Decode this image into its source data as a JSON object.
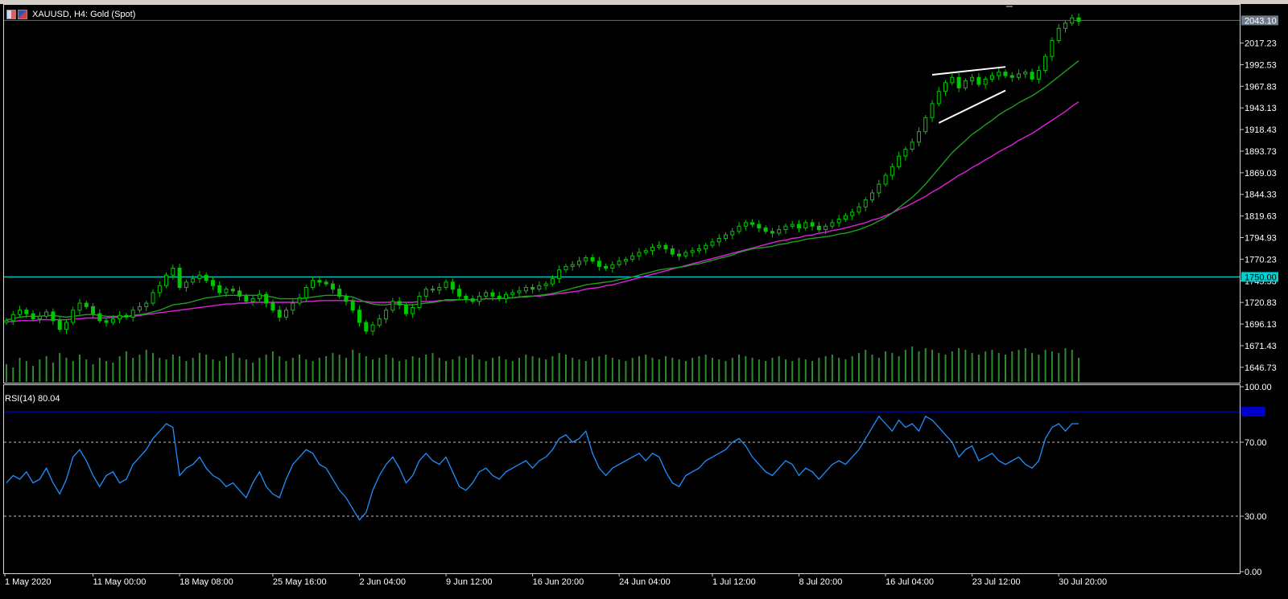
{
  "window": {
    "symbol_title": "XAUUSD, H4:  Gold (Spot)"
  },
  "icons": [
    "chart-bars-icon",
    "flag-icon"
  ],
  "colors": {
    "background": "#000000",
    "candle": "#00c800",
    "volume": "#2e8b2e",
    "ma_fast": "#1f9e1f",
    "ma_slow": "#e020e0",
    "rsi": "#1e90ff",
    "support_line": "#00d0d0",
    "trend_lines": "#ffffff",
    "rsi_level": "#0000cc"
  },
  "chart_data": [
    {
      "type": "line",
      "title": "XAUUSD, H4:  Gold (Spot)",
      "ylim": [
        1630,
        2060
      ],
      "yticks": [
        "2017.23",
        "1992.53",
        "1967.83",
        "1943.13",
        "1918.43",
        "1893.73",
        "1869.03",
        "1844.33",
        "1819.63",
        "1794.93",
        "1770.23",
        "1745.53",
        "1720.83",
        "1696.13",
        "1671.43",
        "1646.73"
      ],
      "current_price": "2043.10",
      "horizontal_level": {
        "value": 1750.0,
        "label": "1750.00"
      },
      "x_labels": [
        "1 May 2020",
        "11 May 00:00",
        "18 May 08:00",
        "25 May 16:00",
        "2 Jun 04:00",
        "9 Jun 12:00",
        "16 Jun 20:00",
        "24 Jun 04:00",
        "1 Jul 12:00",
        "8 Jul 20:00",
        "16 Jul 04:00",
        "23 Jul 12:00",
        "30 Jul 20:00"
      ],
      "series": [
        {
          "kind": "candles",
          "close": [
            1700,
            1707,
            1712,
            1708,
            1702,
            1705,
            1710,
            1700,
            1690,
            1698,
            1712,
            1720,
            1716,
            1708,
            1700,
            1698,
            1702,
            1706,
            1704,
            1712,
            1716,
            1720,
            1732,
            1740,
            1752,
            1760,
            1738,
            1744,
            1748,
            1752,
            1746,
            1740,
            1732,
            1736,
            1734,
            1728,
            1722,
            1725,
            1730,
            1720,
            1712,
            1704,
            1712,
            1720,
            1726,
            1738,
            1746,
            1744,
            1742,
            1736,
            1728,
            1722,
            1712,
            1698,
            1688,
            1695,
            1702,
            1712,
            1722,
            1718,
            1708,
            1715,
            1728,
            1736,
            1735,
            1738,
            1744,
            1736,
            1728,
            1725,
            1722,
            1728,
            1732,
            1728,
            1725,
            1730,
            1732,
            1734,
            1738,
            1736,
            1740,
            1742,
            1748,
            1758,
            1762,
            1764,
            1768,
            1772,
            1768,
            1762,
            1760,
            1764,
            1768,
            1770,
            1774,
            1778,
            1780,
            1784,
            1786,
            1782,
            1776,
            1774,
            1778,
            1780,
            1782,
            1786,
            1790,
            1794,
            1798,
            1802,
            1808,
            1812,
            1810,
            1806,
            1802,
            1800,
            1804,
            1808,
            1810,
            1806,
            1812,
            1808,
            1804,
            1808,
            1812,
            1816,
            1820,
            1824,
            1830,
            1838,
            1846,
            1856,
            1866,
            1876,
            1888,
            1896,
            1904,
            1916,
            1932,
            1948,
            1962,
            1972,
            1978,
            1966,
            1974,
            1978,
            1970,
            1976,
            1980,
            1984,
            1980,
            1978,
            1982,
            1984,
            1976,
            1986,
            2002,
            2020,
            2034,
            2040,
            2046,
            2042
          ]
        },
        {
          "kind": "ma_fast",
          "values": [
            1701,
            1702,
            1704,
            1705,
            1705,
            1705,
            1706,
            1706,
            1705,
            1704,
            1705,
            1706,
            1707,
            1707,
            1706,
            1705,
            1705,
            1705,
            1705,
            1706,
            1707,
            1708,
            1710,
            1712,
            1715,
            1718,
            1719,
            1720,
            1722,
            1724,
            1726,
            1727,
            1728,
            1729,
            1729,
            1729,
            1729,
            1729,
            1729,
            1728,
            1727,
            1725,
            1725,
            1725,
            1725,
            1726,
            1727,
            1728,
            1729,
            1729,
            1729,
            1728,
            1727,
            1724,
            1721,
            1719,
            1718,
            1718,
            1719,
            1719,
            1718,
            1718,
            1719,
            1720,
            1721,
            1722,
            1724,
            1724,
            1724,
            1724,
            1724,
            1724,
            1725,
            1725,
            1725,
            1726,
            1726,
            1727,
            1728,
            1728,
            1729,
            1730,
            1731,
            1733,
            1735,
            1737,
            1739,
            1741,
            1742,
            1743,
            1744,
            1745,
            1747,
            1748,
            1750,
            1752,
            1754,
            1756,
            1758,
            1759,
            1760,
            1761,
            1762,
            1764,
            1765,
            1767,
            1769,
            1771,
            1773,
            1775,
            1778,
            1780,
            1782,
            1783,
            1784,
            1785,
            1787,
            1788,
            1790,
            1791,
            1793,
            1794,
            1795,
            1796,
            1797,
            1799,
            1800,
            1802,
            1804,
            1807,
            1810,
            1814,
            1818,
            1823,
            1829,
            1835,
            1841,
            1848,
            1856,
            1865,
            1874,
            1883,
            1892,
            1899,
            1906,
            1913,
            1918,
            1924,
            1929,
            1935,
            1940,
            1944,
            1949,
            1953,
            1957,
            1962,
            1967,
            1973,
            1979,
            1985,
            1991,
            1997
          ]
        },
        {
          "kind": "ma_slow",
          "values": [
            1699,
            1699,
            1700,
            1700,
            1700,
            1701,
            1701,
            1701,
            1701,
            1701,
            1702,
            1702,
            1703,
            1703,
            1703,
            1703,
            1704,
            1704,
            1705,
            1705,
            1706,
            1707,
            1708,
            1709,
            1710,
            1711,
            1712,
            1713,
            1714,
            1715,
            1716,
            1717,
            1718,
            1719,
            1719,
            1720,
            1720,
            1721,
            1721,
            1721,
            1721,
            1721,
            1721,
            1721,
            1721,
            1722,
            1722,
            1723,
            1723,
            1723,
            1723,
            1723,
            1723,
            1722,
            1722,
            1721,
            1721,
            1721,
            1721,
            1721,
            1721,
            1721,
            1722,
            1722,
            1722,
            1723,
            1723,
            1723,
            1724,
            1724,
            1724,
            1724,
            1725,
            1725,
            1725,
            1726,
            1726,
            1727,
            1727,
            1728,
            1728,
            1729,
            1730,
            1731,
            1732,
            1733,
            1734,
            1736,
            1737,
            1738,
            1740,
            1741,
            1743,
            1745,
            1747,
            1749,
            1751,
            1753,
            1755,
            1757,
            1759,
            1761,
            1763,
            1765,
            1767,
            1769,
            1771,
            1773,
            1775,
            1777,
            1779,
            1781,
            1783,
            1785,
            1787,
            1789,
            1791,
            1792,
            1794,
            1795,
            1797,
            1798,
            1800,
            1801,
            1803,
            1804,
            1806,
            1808,
            1810,
            1812,
            1815,
            1817,
            1820,
            1823,
            1827,
            1830,
            1834,
            1838,
            1842,
            1847,
            1851,
            1856,
            1861,
            1866,
            1870,
            1875,
            1879,
            1884,
            1888,
            1893,
            1897,
            1901,
            1906,
            1910,
            1914,
            1919,
            1924,
            1929,
            1934,
            1939,
            1945,
            1950
          ]
        },
        {
          "kind": "volume",
          "values": [
            22,
            18,
            30,
            26,
            20,
            28,
            32,
            24,
            36,
            30,
            26,
            34,
            28,
            22,
            30,
            26,
            24,
            32,
            38,
            30,
            34,
            40,
            36,
            30,
            28,
            34,
            32,
            26,
            30,
            36,
            34,
            28,
            26,
            32,
            36,
            30,
            28,
            24,
            30,
            34,
            38,
            32,
            26,
            30,
            34,
            28,
            26,
            30,
            32,
            36,
            34,
            30,
            40,
            36,
            32,
            28,
            30,
            34,
            30,
            26,
            28,
            32,
            30,
            34,
            36,
            30,
            26,
            28,
            32,
            30,
            34,
            28,
            26,
            30,
            32,
            28,
            26,
            30,
            34,
            32,
            30,
            28,
            32,
            36,
            34,
            30,
            28,
            26,
            30,
            32,
            34,
            30,
            28,
            26,
            30,
            32,
            34,
            30,
            28,
            32,
            30,
            28,
            26,
            30,
            32,
            34,
            30,
            28,
            26,
            30,
            34,
            32,
            30,
            28,
            26,
            30,
            32,
            28,
            26,
            30,
            28,
            26,
            30,
            32,
            34,
            30,
            28,
            32,
            36,
            40,
            34,
            30,
            38,
            36,
            32,
            40,
            44,
            38,
            42,
            40,
            36,
            34,
            38,
            42,
            40,
            36,
            34,
            38,
            40,
            36,
            34,
            38,
            40,
            42,
            36,
            34,
            40,
            38,
            36,
            42,
            40,
            30
          ]
        }
      ],
      "trend_lines": [
        {
          "from": [
            139,
            1981
          ],
          "to": [
            150,
            1990
          ]
        },
        {
          "from": [
            140,
            1926
          ],
          "to": [
            150,
            1963
          ]
        }
      ]
    },
    {
      "type": "line",
      "title": "RSI(14) 80.04",
      "ylim": [
        0,
        100
      ],
      "yticks": [
        "100.00",
        "70.00",
        "30.00",
        "0.00"
      ],
      "levels": [
        70,
        30
      ],
      "current_value": "80.04",
      "series": [
        {
          "name": "RSI(14)",
          "values": [
            48,
            52,
            50,
            54,
            48,
            50,
            56,
            48,
            42,
            50,
            62,
            66,
            60,
            52,
            46,
            52,
            54,
            48,
            50,
            58,
            62,
            66,
            72,
            76,
            80,
            78,
            52,
            56,
            58,
            62,
            56,
            52,
            50,
            46,
            48,
            44,
            40,
            48,
            54,
            46,
            42,
            40,
            50,
            58,
            62,
            66,
            64,
            58,
            56,
            50,
            44,
            40,
            34,
            28,
            32,
            44,
            52,
            58,
            62,
            56,
            48,
            52,
            60,
            64,
            60,
            58,
            62,
            54,
            46,
            44,
            48,
            54,
            56,
            52,
            50,
            54,
            56,
            58,
            60,
            56,
            60,
            62,
            66,
            72,
            74,
            70,
            72,
            76,
            64,
            56,
            52,
            56,
            58,
            60,
            62,
            64,
            60,
            64,
            62,
            54,
            48,
            46,
            52,
            54,
            56,
            60,
            62,
            64,
            66,
            70,
            72,
            68,
            62,
            58,
            54,
            52,
            56,
            60,
            58,
            52,
            56,
            54,
            50,
            54,
            58,
            60,
            58,
            62,
            66,
            72,
            78,
            84,
            80,
            76,
            82,
            78,
            80,
            76,
            84,
            82,
            78,
            74,
            70,
            62,
            66,
            68,
            60,
            62,
            64,
            60,
            58,
            60,
            62,
            58,
            56,
            60,
            72,
            78,
            80,
            76,
            80,
            80
          ]
        }
      ]
    }
  ]
}
